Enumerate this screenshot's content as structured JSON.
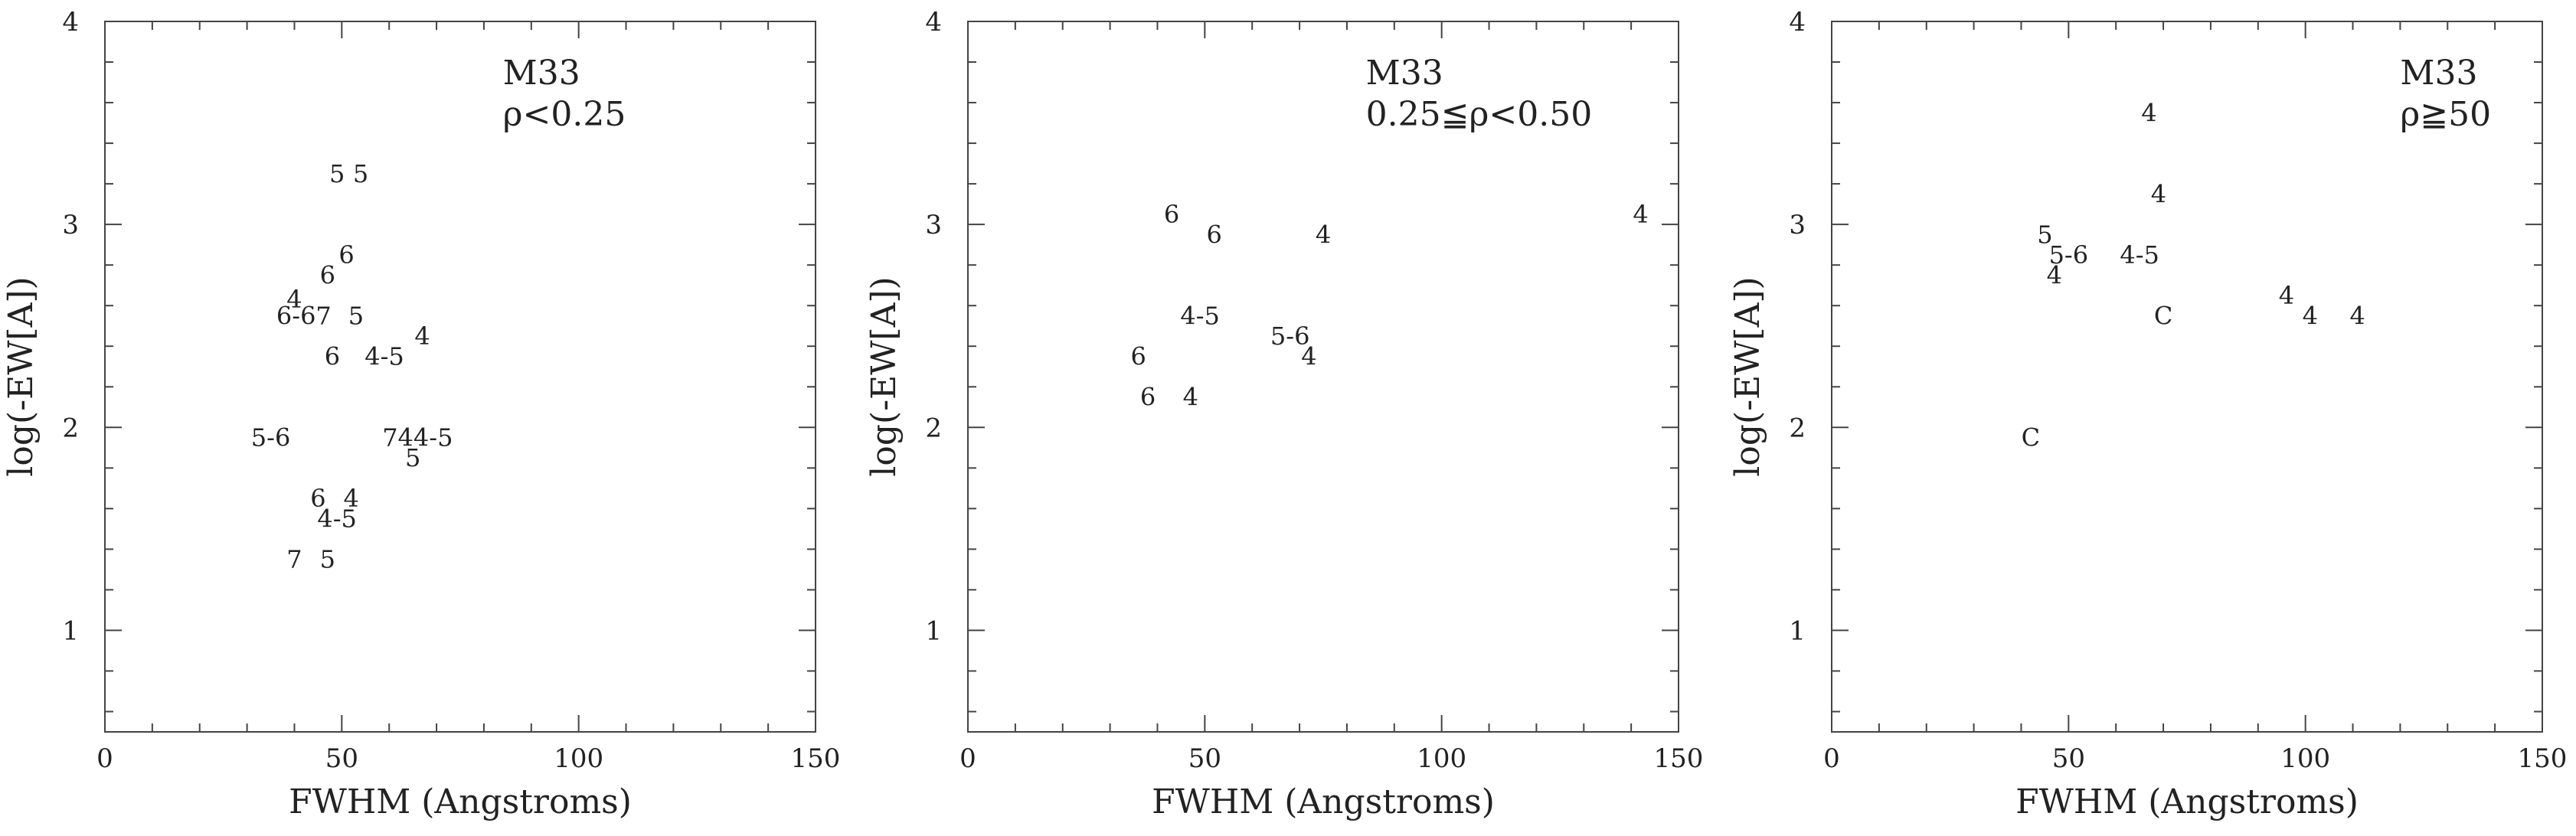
{
  "chart_data": [
    {
      "type": "scatter",
      "marker": "text",
      "xlabel": "FWHM (Angstroms)",
      "ylabel": "log(-EW[A])",
      "xlim": [
        0,
        150
      ],
      "ylim": [
        0.5,
        4
      ],
      "xticks": [
        "0",
        "50",
        "100",
        "150"
      ],
      "yticks": [
        "1",
        "2",
        "3",
        "4"
      ],
      "annotations": [
        "M33",
        "ρ<0.25"
      ],
      "points": [
        {
          "x": 49,
          "y": 3.25,
          "label": "5"
        },
        {
          "x": 54,
          "y": 3.25,
          "label": "5"
        },
        {
          "x": 51,
          "y": 2.85,
          "label": "6"
        },
        {
          "x": 47,
          "y": 2.75,
          "label": "6"
        },
        {
          "x": 40,
          "y": 2.63,
          "label": "4"
        },
        {
          "x": 42,
          "y": 2.55,
          "label": "6-67"
        },
        {
          "x": 53,
          "y": 2.55,
          "label": "5"
        },
        {
          "x": 67,
          "y": 2.45,
          "label": "4"
        },
        {
          "x": 48,
          "y": 2.35,
          "label": "6"
        },
        {
          "x": 59,
          "y": 2.35,
          "label": "4-5"
        },
        {
          "x": 35,
          "y": 1.95,
          "label": "5-6"
        },
        {
          "x": 66,
          "y": 1.95,
          "label": "744-5"
        },
        {
          "x": 65,
          "y": 1.85,
          "label": "5"
        },
        {
          "x": 45,
          "y": 1.65,
          "label": "6"
        },
        {
          "x": 52,
          "y": 1.65,
          "label": "4"
        },
        {
          "x": 49,
          "y": 1.55,
          "label": "4-5"
        },
        {
          "x": 40,
          "y": 1.35,
          "label": "7"
        },
        {
          "x": 47,
          "y": 1.35,
          "label": "5"
        }
      ]
    },
    {
      "type": "scatter",
      "marker": "text",
      "xlabel": "FWHM (Angstroms)",
      "ylabel": "log(-EW[A])",
      "xlim": [
        0,
        150
      ],
      "ylim": [
        0.5,
        4
      ],
      "xticks": [
        "0",
        "50",
        "100",
        "150"
      ],
      "yticks": [
        "1",
        "2",
        "3",
        "4"
      ],
      "annotations": [
        "M33",
        "0.25≦ρ<0.50"
      ],
      "points": [
        {
          "x": 43,
          "y": 3.05,
          "label": "6"
        },
        {
          "x": 52,
          "y": 2.95,
          "label": "6"
        },
        {
          "x": 75,
          "y": 2.95,
          "label": "4"
        },
        {
          "x": 142,
          "y": 3.05,
          "label": "4"
        },
        {
          "x": 49,
          "y": 2.55,
          "label": "4-5"
        },
        {
          "x": 68,
          "y": 2.45,
          "label": "5-6"
        },
        {
          "x": 72,
          "y": 2.35,
          "label": "4"
        },
        {
          "x": 36,
          "y": 2.35,
          "label": "6"
        },
        {
          "x": 38,
          "y": 2.15,
          "label": "6"
        },
        {
          "x": 47,
          "y": 2.15,
          "label": "4"
        }
      ]
    },
    {
      "type": "scatter",
      "marker": "text",
      "xlabel": "FWHM (Angstroms)",
      "ylabel": "log(-EW[A])",
      "xlim": [
        0,
        150
      ],
      "ylim": [
        0.5,
        4
      ],
      "xticks": [
        "0",
        "50",
        "100",
        "150"
      ],
      "yticks": [
        "1",
        "2",
        "3",
        "4"
      ],
      "annotations": [
        "M33",
        "ρ≧50"
      ],
      "points": [
        {
          "x": 67,
          "y": 3.55,
          "label": "4"
        },
        {
          "x": 69,
          "y": 3.15,
          "label": "4"
        },
        {
          "x": 45,
          "y": 2.95,
          "label": "5"
        },
        {
          "x": 50,
          "y": 2.85,
          "label": "5-6"
        },
        {
          "x": 65,
          "y": 2.85,
          "label": "4-5"
        },
        {
          "x": 47,
          "y": 2.75,
          "label": "4"
        },
        {
          "x": 70,
          "y": 2.55,
          "label": "C"
        },
        {
          "x": 96,
          "y": 2.65,
          "label": "4"
        },
        {
          "x": 101,
          "y": 2.55,
          "label": "4"
        },
        {
          "x": 111,
          "y": 2.55,
          "label": "4"
        },
        {
          "x": 42,
          "y": 1.95,
          "label": "C"
        }
      ]
    }
  ]
}
